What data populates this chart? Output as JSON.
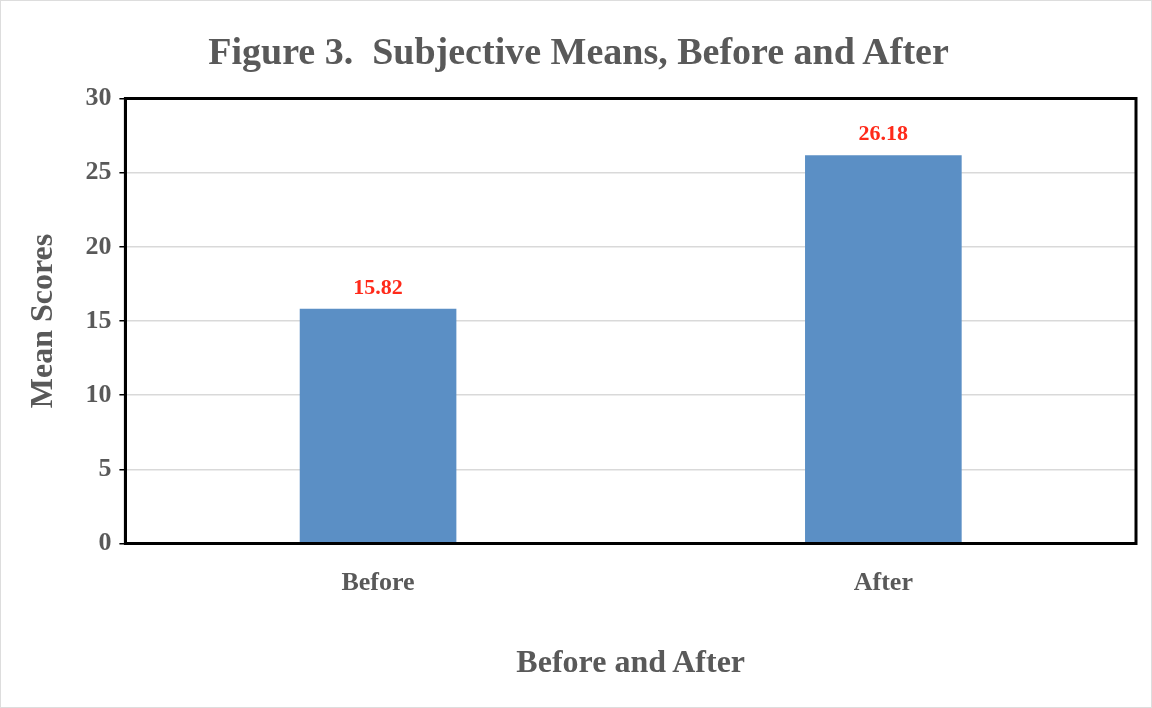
{
  "chart_data": {
    "type": "bar",
    "title": "Figure 3.  Subjective Means, Before and After",
    "xlabel": "Before and After",
    "ylabel": "Mean Scores",
    "categories": [
      "Before",
      "After"
    ],
    "values": [
      15.82,
      26.18
    ],
    "color": "#5b8fc5",
    "ylim": [
      0,
      30
    ],
    "yticks": [
      0,
      5,
      10,
      15,
      20,
      25,
      30
    ],
    "grid": "y",
    "data_labels": true,
    "legend": false
  }
}
